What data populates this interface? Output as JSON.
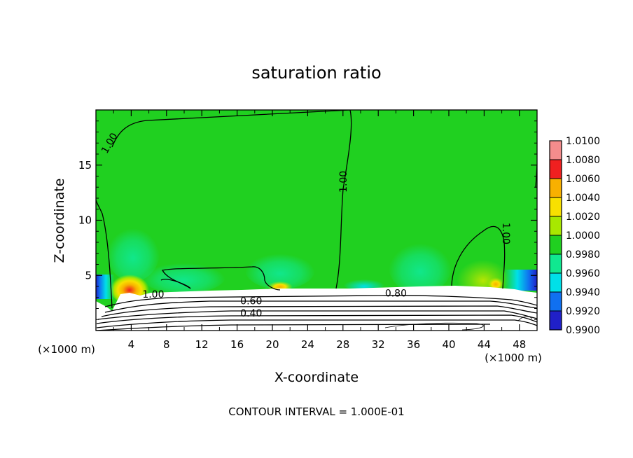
{
  "chart_data": {
    "type": "heatmap",
    "title": "saturation ratio",
    "xlabel": "X-coordinate",
    "ylabel": "Z-coordinate",
    "x_unit": "(×1000 m)",
    "x_unit_right": "(×1000 m)",
    "xlim": [
      0,
      50
    ],
    "ylim": [
      0,
      20
    ],
    "x_ticks": [
      4,
      8,
      12,
      16,
      20,
      24,
      28,
      32,
      36,
      40,
      44,
      48
    ],
    "y_ticks": [
      5,
      10,
      15
    ],
    "footer": "CONTOUR INTERVAL = 1.000E-01",
    "colorbar": {
      "levels": [
        "1.0100",
        "1.0080",
        "1.0060",
        "1.0040",
        "1.0020",
        "1.0000",
        "0.9980",
        "0.9960",
        "0.9940",
        "0.9920",
        "0.9900"
      ],
      "colors": [
        "#f48c8c",
        "#f02020",
        "#f8b000",
        "#f8e000",
        "#a8e800",
        "#20d020",
        "#10e890",
        "#00e0e8",
        "#1070f0",
        "#2020c8",
        "#6010a0"
      ]
    },
    "contour_labels": [
      {
        "text": "1.00",
        "x": 1.5,
        "z": 17.0,
        "rotate": -60
      },
      {
        "text": "1.00",
        "x": 28.0,
        "z": 13.5,
        "rotate": -90
      },
      {
        "text": "1.00",
        "x": 46.5,
        "z": 8.8,
        "rotate": 90
      },
      {
        "text": "1.00",
        "x": 6.5,
        "z": 3.3,
        "rotate": 0
      },
      {
        "text": "0.80",
        "x": 34.0,
        "z": 3.4,
        "rotate": 0
      },
      {
        "text": "0.60",
        "x": 17.6,
        "z": 2.7,
        "rotate": 0
      },
      {
        "text": "0.40",
        "x": 17.6,
        "z": 1.6,
        "rotate": 0
      }
    ]
  }
}
